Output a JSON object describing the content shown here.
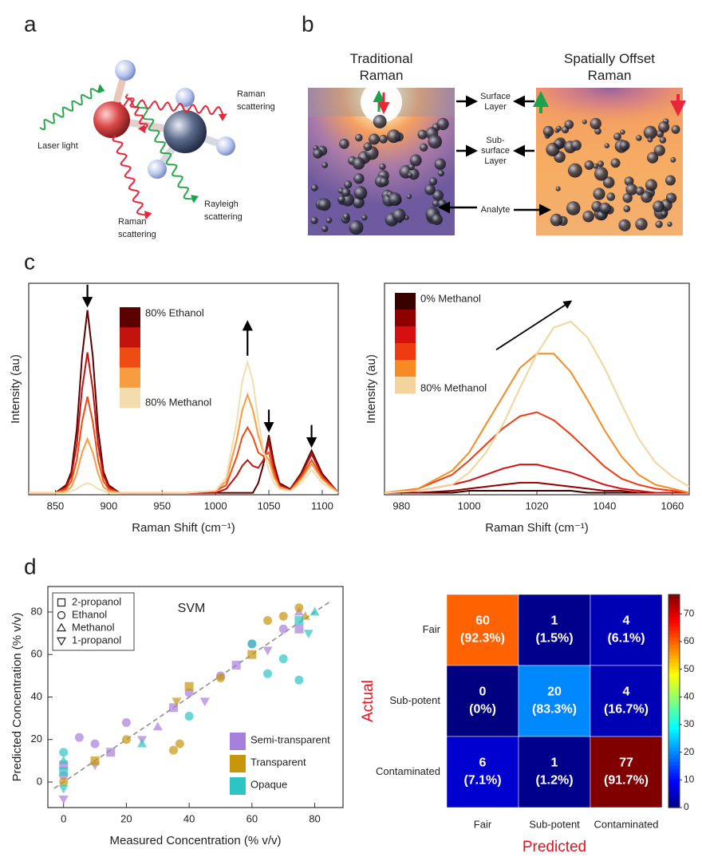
{
  "panel_labels": [
    "a",
    "b",
    "c",
    "d"
  ],
  "diagram_a": {
    "labels": {
      "laser": "Laser light",
      "raman_top": [
        "Raman",
        "scattering"
      ],
      "rayleigh": [
        "Rayleigh",
        "scattering"
      ],
      "raman_bottom": [
        "Raman",
        "scattering"
      ]
    }
  },
  "diagram_b": {
    "titles": [
      [
        "Traditional",
        "Raman"
      ],
      [
        "Spatially Offset",
        "Raman"
      ]
    ],
    "layers": [
      [
        "Surface",
        "Layer"
      ],
      [
        "Sub-",
        "surface",
        "Layer"
      ],
      [
        "Analyte"
      ]
    ]
  },
  "chart_data": [
    {
      "type": "line",
      "x_label": "Raman Shift (cm⁻¹)",
      "y_label": "Intensity (au)",
      "x": [
        825,
        850,
        860,
        865,
        870,
        875,
        880,
        885,
        890,
        895,
        900,
        910,
        930,
        970,
        1000,
        1010,
        1020,
        1025,
        1030,
        1035,
        1040,
        1045,
        1050,
        1055,
        1060,
        1070,
        1080,
        1090,
        1100,
        1115
      ],
      "series": [
        {
          "color": "#5c0000",
          "values": [
            1,
            1,
            5,
            12,
            34,
            72,
            96,
            72,
            34,
            12,
            5,
            1,
            1,
            1,
            1,
            1,
            1,
            1,
            1,
            1,
            6,
            16,
            31,
            16,
            6,
            3,
            11,
            23,
            11,
            1
          ]
        },
        {
          "color": "#c4120c",
          "values": [
            1,
            1,
            4,
            10,
            26,
            55,
            74,
            55,
            26,
            10,
            4,
            1,
            1,
            1,
            1,
            3,
            10,
            15,
            18,
            15,
            14,
            18,
            27,
            14,
            5,
            3,
            10,
            21,
            10,
            1
          ]
        },
        {
          "color": "#ee4c12",
          "values": [
            1,
            1,
            3,
            7,
            18,
            38,
            51,
            38,
            18,
            7,
            3,
            1,
            1,
            1,
            2,
            5,
            20,
            30,
            35,
            30,
            22,
            20,
            22,
            11,
            4,
            2,
            9,
            18,
            9,
            1
          ]
        },
        {
          "color": "#f89c42",
          "values": [
            1,
            1,
            2,
            4,
            11,
            22,
            29,
            22,
            11,
            4,
            2,
            1,
            1,
            1,
            2,
            7,
            29,
            44,
            52,
            44,
            31,
            22,
            18,
            9,
            4,
            2,
            8,
            16,
            8,
            1
          ]
        },
        {
          "color": "#f3dcae",
          "values": [
            1,
            1,
            1,
            2,
            3,
            5,
            6,
            5,
            3,
            2,
            1,
            1,
            1,
            1,
            2,
            9,
            38,
            59,
            69,
            59,
            39,
            23,
            13,
            6,
            3,
            2,
            6,
            13,
            6,
            1
          ]
        }
      ],
      "xlim": [
        825,
        1115
      ],
      "xticks": [
        850,
        900,
        950,
        1000,
        1050,
        1100
      ],
      "ylim": [
        0,
        110
      ],
      "legend": {
        "top": "80% Ethanol",
        "bottom": "80% Methanol"
      },
      "arrows": [
        {
          "x": 880,
          "direction": "down"
        },
        {
          "x": 1030,
          "direction": "up"
        },
        {
          "x": 1050,
          "direction": "down"
        },
        {
          "x": 1090,
          "direction": "down"
        }
      ]
    },
    {
      "type": "line",
      "x_label": "Raman Shift (cm⁻¹)",
      "y_label": "Intensity (au)",
      "x": [
        975,
        985,
        995,
        1000,
        1005,
        1010,
        1015,
        1020,
        1025,
        1030,
        1035,
        1040,
        1045,
        1050,
        1055,
        1060,
        1065
      ],
      "series": [
        {
          "color": "#3a0000",
          "values": [
            1,
            1,
            1,
            2,
            2,
            2,
            2,
            2,
            2,
            2,
            1,
            1,
            1,
            1,
            1,
            1,
            1
          ]
        },
        {
          "color": "#900000",
          "values": [
            1,
            1,
            2,
            3,
            4,
            5,
            6,
            6,
            5,
            4,
            3,
            2,
            2,
            1,
            1,
            1,
            1
          ]
        },
        {
          "color": "#d41010",
          "values": [
            1,
            2,
            5,
            7,
            10,
            13,
            15,
            15,
            13,
            11,
            8,
            5,
            3,
            2,
            1,
            1,
            1
          ]
        },
        {
          "color": "#ee3c10",
          "values": [
            1,
            3,
            10,
            17,
            25,
            33,
            39,
            41,
            37,
            30,
            22,
            14,
            8,
            5,
            3,
            2,
            1
          ]
        },
        {
          "color": "#f78a20",
          "values": [
            1,
            3,
            12,
            21,
            35,
            49,
            63,
            70,
            70,
            61,
            47,
            32,
            19,
            10,
            5,
            3,
            1
          ]
        },
        {
          "color": "#f3d49c",
          "values": [
            1,
            2,
            5,
            11,
            21,
            35,
            53,
            70,
            83,
            86,
            78,
            63,
            45,
            28,
            16,
            9,
            4
          ]
        }
      ],
      "xlim": [
        975,
        1065
      ],
      "xticks": [
        980,
        1000,
        1020,
        1040,
        1060
      ],
      "ylim": [
        0,
        105
      ],
      "legend": {
        "top": "0% Methanol",
        "bottom": "80% Methanol"
      },
      "arrows": [
        {
          "from": [
            1008,
            72
          ],
          "to": [
            1030,
            96
          ]
        }
      ]
    },
    {
      "type": "scatter",
      "title": "SVM",
      "x_label": "Measured Concentration (% v/v)",
      "y_label": "Predicted Concentration (% v/v)",
      "xlim": [
        -5,
        89
      ],
      "xticks": [
        0,
        20,
        40,
        60,
        80
      ],
      "ylim": [
        -12,
        92
      ],
      "yticks": [
        0,
        20,
        40,
        60,
        80
      ],
      "marker_legend": [
        {
          "name": "2-propanol",
          "marker": "square"
        },
        {
          "name": "Ethanol",
          "marker": "circle"
        },
        {
          "name": "Methanol",
          "marker": "triangle-up"
        },
        {
          "name": "1-propanol",
          "marker": "triangle-down"
        }
      ],
      "reference_line": {
        "x": [
          -3,
          85
        ],
        "y": [
          -3,
          85
        ]
      },
      "series": [
        {
          "name": "Semi-transparent",
          "color": "#a77fdc",
          "x": [
            0,
            0,
            0,
            5,
            10,
            10,
            15,
            20,
            25,
            30,
            35,
            40,
            45,
            50,
            55,
            60,
            65,
            70,
            75,
            75
          ],
          "values": [
            -8,
            3,
            8,
            21,
            18,
            8,
            14,
            28,
            20,
            26,
            35,
            42,
            38,
            50,
            55,
            65,
            62,
            72,
            72,
            80
          ],
          "markers": [
            "triangle-down",
            "circle",
            "square",
            "circle",
            "circle",
            "triangle-down",
            "square",
            "circle",
            "triangle-down",
            "triangle-up",
            "square",
            "circle",
            "triangle-down",
            "circle",
            "square",
            "circle",
            "triangle-down",
            "circle",
            "square",
            "triangle-up"
          ]
        },
        {
          "name": "Transparent",
          "color": "#c8960c",
          "x": [
            0,
            10,
            20,
            35,
            37,
            36,
            40,
            50,
            60,
            65,
            70,
            75,
            77
          ],
          "values": [
            0,
            10,
            20,
            15,
            18,
            38,
            45,
            49,
            60,
            76,
            78,
            82,
            78
          ],
          "markers": [
            "circle",
            "square",
            "circle",
            "circle",
            "circle",
            "triangle-down",
            "square",
            "circle",
            "square",
            "circle",
            "circle",
            "circle",
            "triangle-up"
          ]
        },
        {
          "name": "Opaque",
          "color": "#2ec4c4",
          "x": [
            0,
            0,
            0,
            0,
            25,
            40,
            60,
            65,
            70,
            75,
            75,
            78,
            80
          ],
          "values": [
            14,
            5,
            -3,
            10,
            18,
            31,
            65,
            51,
            58,
            48,
            76,
            70,
            80
          ],
          "markers": [
            "circle",
            "square",
            "triangle-down",
            "triangle-up",
            "triangle-up",
            "circle",
            "circle",
            "circle",
            "circle",
            "circle",
            "square",
            "triangle-down",
            "triangle-up"
          ]
        }
      ]
    },
    {
      "type": "heatmap",
      "x_label": "Predicted",
      "y_label": "Actual",
      "categories": [
        "Fair",
        "Sub-potent",
        "Contaminated"
      ],
      "values": [
        [
          60,
          1,
          4
        ],
        [
          0,
          20,
          4
        ],
        [
          6,
          1,
          77
        ]
      ],
      "percent_labels": [
        [
          "(92.3%)",
          "(1.5%)",
          "(6.1%)"
        ],
        [
          "(0%)",
          "(83.3%)",
          "(16.7%)"
        ],
        [
          "(7.1%)",
          "(1.2%)",
          "(91.7%)"
        ]
      ],
      "zlim": [
        0,
        77
      ],
      "zticks": [
        0,
        10,
        20,
        30,
        40,
        50,
        60,
        70
      ],
      "colormap": "jet"
    }
  ]
}
